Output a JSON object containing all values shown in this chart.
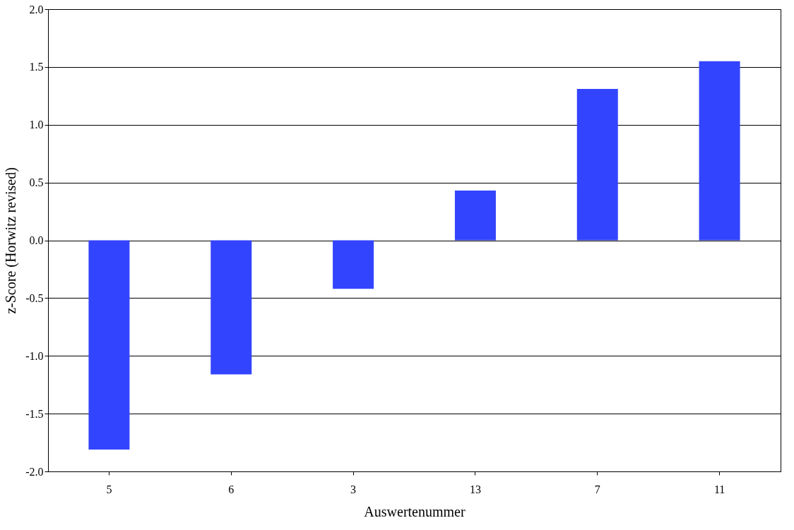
{
  "chart_data": {
    "type": "bar",
    "xlabel": "Auswertenummer",
    "ylabel": "z-Score (Horwitz revised)",
    "categories": [
      "5",
      "6",
      "3",
      "13",
      "7",
      "11"
    ],
    "values": [
      -1.81,
      -1.16,
      -0.42,
      0.43,
      1.31,
      1.55
    ],
    "color": "#3344ff",
    "ylim": [
      -2.0,
      2.0
    ],
    "yticks": [
      {
        "value": -2.0,
        "label": "-2.0"
      },
      {
        "value": -1.5,
        "label": "-1.5"
      },
      {
        "value": -1.0,
        "label": "-1.0"
      },
      {
        "value": -0.5,
        "label": "-0.5"
      },
      {
        "value": 0.0,
        "label": "0.0"
      },
      {
        "value": 0.5,
        "label": "0.5"
      },
      {
        "value": 1.0,
        "label": "1.0"
      },
      {
        "value": 1.5,
        "label": "1.5"
      },
      {
        "value": 2.0,
        "label": "2.0"
      }
    ],
    "grid": "y"
  }
}
